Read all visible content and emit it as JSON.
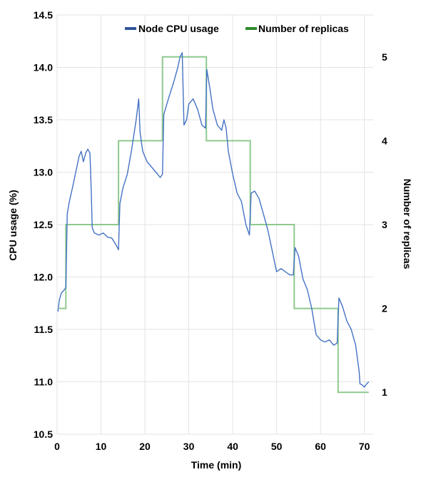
{
  "chart_data": {
    "type": "line",
    "title": "",
    "xlabel": "Time (min)",
    "ylabel": "CPU usage (%)",
    "y2label": "Number of replicas",
    "xlim": [
      0,
      72
    ],
    "ylim": [
      10.5,
      14.5
    ],
    "y2lim": [
      0.5,
      5.5
    ],
    "x_ticks": [
      0,
      10,
      20,
      30,
      40,
      50,
      60,
      70
    ],
    "y_ticks": [
      10.5,
      11.0,
      11.5,
      12.0,
      12.5,
      13.0,
      13.5,
      14.0,
      14.5
    ],
    "y2_ticks": [
      1,
      2,
      3,
      4,
      5
    ],
    "grid": true,
    "legend": "top-center",
    "series": [
      {
        "name": "Node CPU usage",
        "axis": "left",
        "color": "#4472c4",
        "legend_color": "#2f5597",
        "points": [
          [
            0.2,
            11.67
          ],
          [
            0.5,
            11.78
          ],
          [
            1.0,
            11.85
          ],
          [
            1.5,
            11.87
          ],
          [
            2.0,
            11.9
          ],
          [
            2.3,
            12.6
          ],
          [
            2.8,
            12.72
          ],
          [
            3.5,
            12.85
          ],
          [
            4.0,
            12.95
          ],
          [
            4.5,
            13.05
          ],
          [
            5.0,
            13.15
          ],
          [
            5.5,
            13.2
          ],
          [
            6.0,
            13.1
          ],
          [
            6.5,
            13.18
          ],
          [
            7.0,
            13.22
          ],
          [
            7.5,
            13.18
          ],
          [
            7.8,
            12.8
          ],
          [
            8.0,
            12.47
          ],
          [
            8.5,
            12.42
          ],
          [
            9.5,
            12.4
          ],
          [
            10.5,
            12.42
          ],
          [
            11.5,
            12.38
          ],
          [
            12.5,
            12.37
          ],
          [
            13.5,
            12.3
          ],
          [
            14.0,
            12.26
          ],
          [
            14.3,
            12.7
          ],
          [
            15.0,
            12.85
          ],
          [
            16.0,
            12.98
          ],
          [
            17.0,
            13.22
          ],
          [
            18.0,
            13.5
          ],
          [
            18.6,
            13.7
          ],
          [
            18.9,
            13.38
          ],
          [
            19.5,
            13.2
          ],
          [
            20.5,
            13.1
          ],
          [
            21.5,
            13.05
          ],
          [
            22.5,
            13.0
          ],
          [
            23.5,
            12.95
          ],
          [
            24.0,
            12.98
          ],
          [
            24.3,
            13.55
          ],
          [
            25.5,
            13.72
          ],
          [
            26.5,
            13.85
          ],
          [
            27.5,
            14.0
          ],
          [
            28.0,
            14.1
          ],
          [
            28.5,
            14.14
          ],
          [
            28.9,
            13.45
          ],
          [
            29.5,
            13.5
          ],
          [
            30.0,
            13.65
          ],
          [
            31.0,
            13.7
          ],
          [
            32.0,
            13.6
          ],
          [
            33.0,
            13.45
          ],
          [
            33.8,
            13.42
          ],
          [
            34.1,
            13.98
          ],
          [
            34.8,
            13.8
          ],
          [
            35.5,
            13.6
          ],
          [
            36.5,
            13.45
          ],
          [
            37.5,
            13.4
          ],
          [
            38.0,
            13.5
          ],
          [
            38.5,
            13.42
          ],
          [
            39.0,
            13.2
          ],
          [
            40.0,
            12.98
          ],
          [
            41.0,
            12.8
          ],
          [
            42.0,
            12.72
          ],
          [
            43.0,
            12.5
          ],
          [
            43.8,
            12.4
          ],
          [
            44.2,
            12.8
          ],
          [
            45.0,
            12.82
          ],
          [
            46.0,
            12.75
          ],
          [
            47.0,
            12.6
          ],
          [
            48.0,
            12.45
          ],
          [
            49.0,
            12.25
          ],
          [
            50.0,
            12.05
          ],
          [
            51.0,
            12.08
          ],
          [
            52.0,
            12.05
          ],
          [
            53.0,
            12.02
          ],
          [
            53.8,
            12.02
          ],
          [
            54.2,
            12.28
          ],
          [
            55.0,
            12.2
          ],
          [
            56.0,
            11.98
          ],
          [
            57.0,
            11.88
          ],
          [
            58.0,
            11.7
          ],
          [
            59.0,
            11.45
          ],
          [
            60.0,
            11.4
          ],
          [
            61.0,
            11.38
          ],
          [
            62.0,
            11.4
          ],
          [
            63.0,
            11.35
          ],
          [
            63.8,
            11.37
          ],
          [
            64.2,
            11.8
          ],
          [
            65.0,
            11.72
          ],
          [
            66.0,
            11.58
          ],
          [
            67.0,
            11.5
          ],
          [
            68.0,
            11.35
          ],
          [
            68.8,
            11.1
          ],
          [
            69.0,
            10.98
          ],
          [
            69.5,
            10.97
          ],
          [
            70.0,
            10.95
          ],
          [
            70.5,
            10.98
          ],
          [
            71.0,
            11.0
          ]
        ]
      },
      {
        "name": "Number of replicas",
        "axis": "right",
        "color": "#8fc98d",
        "legend_color": "#2e8b2e",
        "points": [
          [
            0.5,
            2
          ],
          [
            2,
            2
          ],
          [
            2,
            3
          ],
          [
            14,
            3
          ],
          [
            14,
            4
          ],
          [
            24,
            4
          ],
          [
            24,
            5
          ],
          [
            34,
            5
          ],
          [
            34,
            4
          ],
          [
            44,
            4
          ],
          [
            44,
            3
          ],
          [
            54,
            3
          ],
          [
            54,
            2
          ],
          [
            64,
            2
          ],
          [
            64,
            1
          ],
          [
            71,
            1
          ]
        ]
      }
    ]
  }
}
